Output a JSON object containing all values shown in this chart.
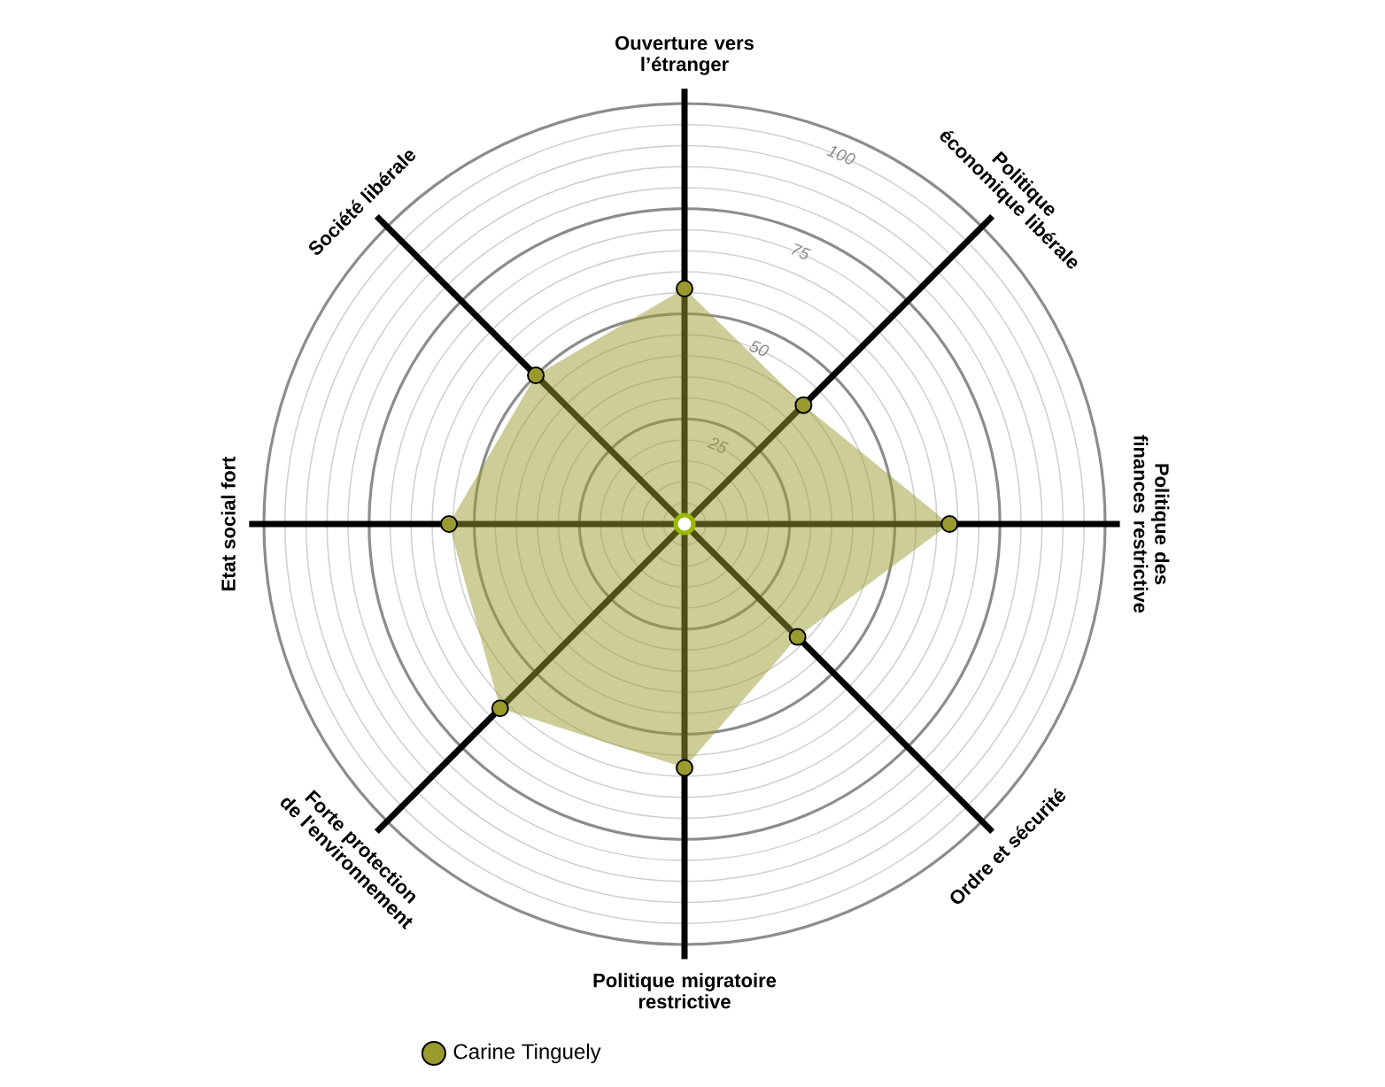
{
  "chart_data": {
    "type": "radar",
    "categories": [
      "Ouverture vers l’étranger",
      "Politique économique libérale",
      "Politique des finances restrictive",
      "Ordre et sécurité",
      "Politique migratoire restrictive",
      "Forte protection de l'environnement",
      "Etat social fort",
      "Société libérale"
    ],
    "series": [
      {
        "name": "Carine Tinguely",
        "color": "#9a9b2f",
        "values": [
          56,
          40,
          63,
          38,
          58,
          62,
          56,
          50
        ]
      }
    ],
    "ylim": [
      0,
      100
    ],
    "yticks": [
      25,
      50,
      75,
      100
    ],
    "grid": true,
    "legend": "bottom",
    "marker": "circle"
  }
}
